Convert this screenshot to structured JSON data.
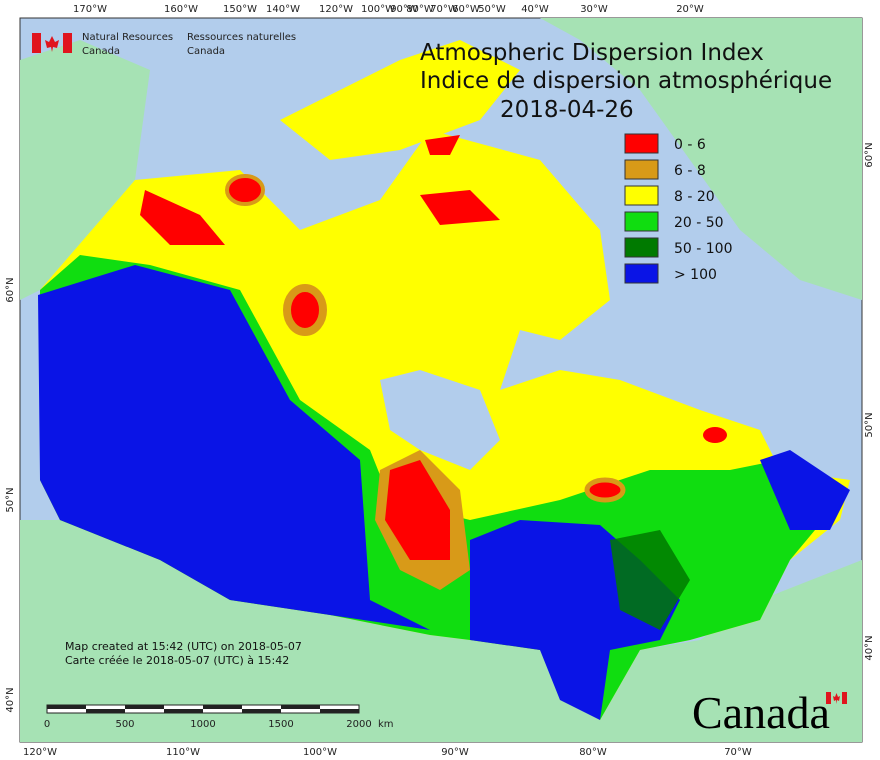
{
  "header": {
    "agency_en": [
      "Natural Resources",
      "Canada"
    ],
    "agency_fr": [
      "Ressources naturelles",
      "Canada"
    ]
  },
  "title": [
    "Atmospheric Dispersion Index",
    "Indice de dispersion atmosphérique",
    "2018-04-26"
  ],
  "legend": [
    {
      "label": "0 - 6",
      "color": "#ff0000"
    },
    {
      "label": "6 - 8",
      "color": "#d89a18"
    },
    {
      "label": "8 - 20",
      "color": "#ffff00"
    },
    {
      "label": "20 - 50",
      "color": "#10dd10"
    },
    {
      "label": "50 - 100",
      "color": "#007a00"
    },
    {
      "label": "> 100",
      "color": "#0a14e6"
    }
  ],
  "top_longitudes": [
    "170°W",
    "160°W",
    "150°W",
    "140°W",
    "120°W",
    "100°W",
    "90°W",
    "80°W",
    "70°W",
    "60°W",
    "50°W",
    "40°W",
    "30°W",
    "20°W"
  ],
  "bottom_longitudes": [
    "120°W",
    "110°W",
    "100°W",
    "90°W",
    "80°W",
    "70°W"
  ],
  "left_latitudes": [
    "60°N",
    "50°N",
    "40°N"
  ],
  "right_latitudes": [
    "60°N",
    "50°N",
    "40°N"
  ],
  "credits": [
    "Map created at 15:42 (UTC) on 2018-05-07",
    "Carte créée le 2018-05-07 (UTC) à 15:42"
  ],
  "scale_bar": {
    "ticks": [
      "0",
      "500",
      "1000",
      "1500",
      "2000"
    ],
    "unit": "km"
  },
  "wordmark": "Canada"
}
